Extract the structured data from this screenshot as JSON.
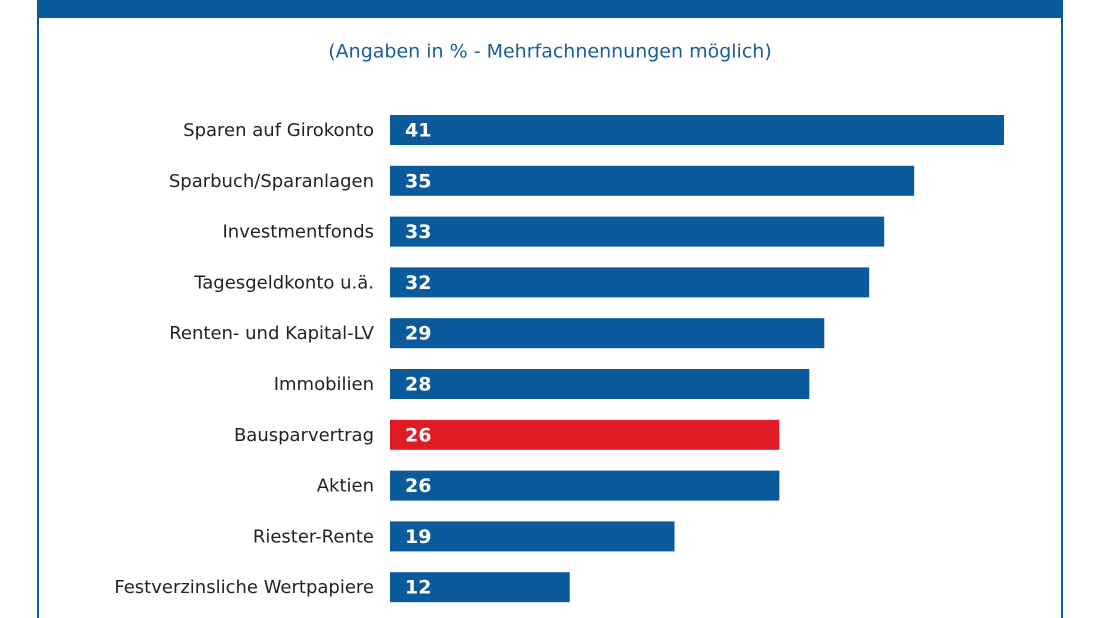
{
  "chart_data": {
    "type": "bar",
    "orientation": "horizontal",
    "subtitle": "(Angaben in % - Mehrfachnennungen möglich)",
    "categories": [
      "Sparen auf Girokonto",
      "Sparbuch/Sparanlagen",
      "Investmentfonds",
      "Tagesgeldkonto u.ä.",
      "Renten- und Kapital-LV",
      "Immobilien",
      "Bausparvertrag",
      "Aktien",
      "Riester-Rente",
      "Festverzinsliche Wertpapiere"
    ],
    "values": [
      41,
      35,
      33,
      32,
      29,
      28,
      26,
      26,
      19,
      12
    ],
    "colors": [
      "#0b5a9c",
      "#0b5a9c",
      "#0b5a9c",
      "#0b5a9c",
      "#0b5a9c",
      "#0b5a9c",
      "#e11b24",
      "#0b5a9c",
      "#0b5a9c",
      "#0b5a9c"
    ]
  }
}
